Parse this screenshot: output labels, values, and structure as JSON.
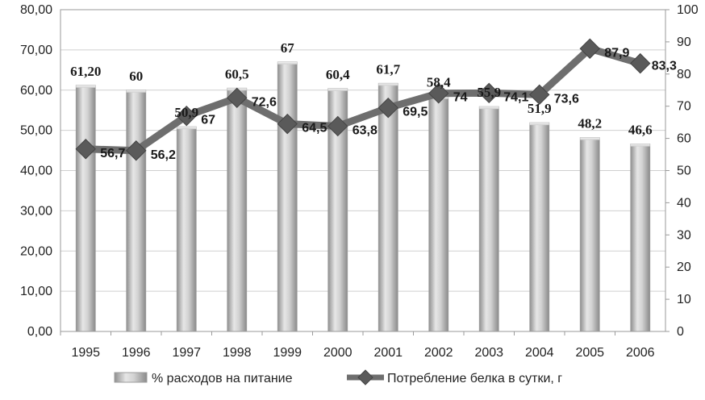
{
  "chart_data": {
    "type": "bar",
    "categories": [
      "1995",
      "1996",
      "1997",
      "1998",
      "1999",
      "2000",
      "2001",
      "2002",
      "2003",
      "2004",
      "2005",
      "2006"
    ],
    "series": [
      {
        "name": "% расходов на питание",
        "type": "bar",
        "axis": "left",
        "values": [
          61.2,
          60,
          50.9,
          60.5,
          67,
          60.4,
          61.7,
          58.4,
          55.9,
          51.9,
          48.2,
          46.6
        ],
        "labels": [
          "61,20",
          "60",
          "50,9",
          "60,5",
          "67",
          "60,4",
          "61,7",
          "58,4",
          "55,9",
          "51,9",
          "48,2",
          "46,6"
        ]
      },
      {
        "name": "Потребление белка в сутки, г",
        "type": "line",
        "axis": "right",
        "values": [
          56.7,
          56.2,
          67,
          72.6,
          64.5,
          63.8,
          69.5,
          74,
          74.1,
          73.6,
          87.9,
          83.3
        ],
        "labels": [
          "56,7",
          "56,2",
          "67",
          "72,6",
          "64,5",
          "63,8",
          "69,5",
          "74",
          "74,1",
          "73,6",
          "87,9",
          "83,3"
        ]
      }
    ],
    "y_left": {
      "range": [
        0,
        80
      ],
      "ticks": [
        "0,00",
        "10,00",
        "20,00",
        "30,00",
        "40,00",
        "50,00",
        "60,00",
        "70,00",
        "80,00"
      ]
    },
    "y_right": {
      "range": [
        0,
        100
      ],
      "ticks": [
        "0",
        "10",
        "20",
        "30",
        "40",
        "50",
        "60",
        "70",
        "80",
        "90",
        "100"
      ]
    },
    "grid": true,
    "legend_position": "bottom",
    "colors": {
      "bar": "#b8b8b8",
      "line": "#6e6e6e",
      "marker": "#5a5a5a",
      "grid": "#cfcfcf"
    }
  }
}
